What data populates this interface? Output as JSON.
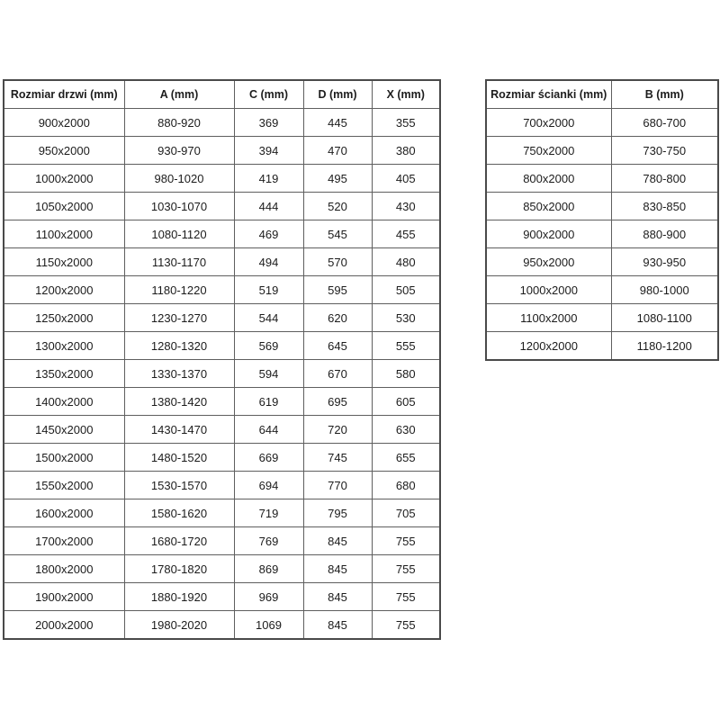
{
  "colors": {
    "background": "#ffffff",
    "border_outer": "#4a4a4a",
    "border_inner": "#5f5f5f",
    "text": "#1c1c1c"
  },
  "doors_table": {
    "columns": [
      "Rozmiar drzwi (mm)",
      "A (mm)",
      "C (mm)",
      "D (mm)",
      "X (mm)"
    ],
    "rows": [
      [
        "900x2000",
        "880-920",
        "369",
        "445",
        "355"
      ],
      [
        "950x2000",
        "930-970",
        "394",
        "470",
        "380"
      ],
      [
        "1000x2000",
        "980-1020",
        "419",
        "495",
        "405"
      ],
      [
        "1050x2000",
        "1030-1070",
        "444",
        "520",
        "430"
      ],
      [
        "1100x2000",
        "1080-1120",
        "469",
        "545",
        "455"
      ],
      [
        "1150x2000",
        "1130-1170",
        "494",
        "570",
        "480"
      ],
      [
        "1200x2000",
        "1180-1220",
        "519",
        "595",
        "505"
      ],
      [
        "1250x2000",
        "1230-1270",
        "544",
        "620",
        "530"
      ],
      [
        "1300x2000",
        "1280-1320",
        "569",
        "645",
        "555"
      ],
      [
        "1350x2000",
        "1330-1370",
        "594",
        "670",
        "580"
      ],
      [
        "1400x2000",
        "1380-1420",
        "619",
        "695",
        "605"
      ],
      [
        "1450x2000",
        "1430-1470",
        "644",
        "720",
        "630"
      ],
      [
        "1500x2000",
        "1480-1520",
        "669",
        "745",
        "655"
      ],
      [
        "1550x2000",
        "1530-1570",
        "694",
        "770",
        "680"
      ],
      [
        "1600x2000",
        "1580-1620",
        "719",
        "795",
        "705"
      ],
      [
        "1700x2000",
        "1680-1720",
        "769",
        "845",
        "755"
      ],
      [
        "1800x2000",
        "1780-1820",
        "869",
        "845",
        "755"
      ],
      [
        "1900x2000",
        "1880-1920",
        "969",
        "845",
        "755"
      ],
      [
        "2000x2000",
        "1980-2020",
        "1069",
        "845",
        "755"
      ]
    ]
  },
  "walls_table": {
    "columns": [
      "Rozmiar ścianki (mm)",
      "B (mm)"
    ],
    "rows": [
      [
        "700x2000",
        "680-700"
      ],
      [
        "750x2000",
        "730-750"
      ],
      [
        "800x2000",
        "780-800"
      ],
      [
        "850x2000",
        "830-850"
      ],
      [
        "900x2000",
        "880-900"
      ],
      [
        "950x2000",
        "930-950"
      ],
      [
        "1000x2000",
        "980-1000"
      ],
      [
        "1100x2000",
        "1080-1100"
      ],
      [
        "1200x2000",
        "1180-1200"
      ]
    ]
  }
}
